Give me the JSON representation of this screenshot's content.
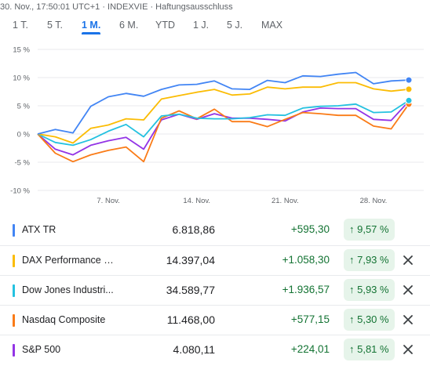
{
  "header": {
    "meta": "30. Nov., 17:50:01 UTC+1 · INDEXVIE · Haftungsausschluss"
  },
  "tabs": [
    {
      "label": "1 T.",
      "active": false
    },
    {
      "label": "5 T.",
      "active": false
    },
    {
      "label": "1 M.",
      "active": true
    },
    {
      "label": "6 M.",
      "active": false
    },
    {
      "label": "YTD",
      "active": false
    },
    {
      "label": "1 J.",
      "active": false
    },
    {
      "label": "5 J.",
      "active": false
    },
    {
      "label": "MAX",
      "active": false
    }
  ],
  "chart_data": {
    "type": "line",
    "x": [
      "1. Nov.",
      "2. Nov.",
      "3. Nov.",
      "4. Nov.",
      "7. Nov.",
      "8. Nov.",
      "9. Nov.",
      "10. Nov.",
      "11. Nov.",
      "14. Nov.",
      "15. Nov.",
      "16. Nov.",
      "17. Nov.",
      "18. Nov.",
      "21. Nov.",
      "22. Nov.",
      "23. Nov.",
      "24. Nov.",
      "25. Nov.",
      "28. Nov.",
      "29. Nov.",
      "30. Nov."
    ],
    "x_ticks": [
      "7. Nov.",
      "14. Nov.",
      "21. Nov.",
      "28. Nov."
    ],
    "y_ticks": [
      15,
      10,
      5,
      0,
      -5,
      -10
    ],
    "ylim": [
      -10,
      15
    ],
    "y_tick_suffix": " %",
    "grid": true,
    "series": [
      {
        "name": "ATX TR",
        "color": "#4285f4",
        "values": [
          0,
          0.8,
          0.2,
          4.9,
          6.6,
          7.2,
          6.7,
          7.9,
          8.7,
          8.8,
          9.4,
          8.0,
          7.9,
          9.5,
          9.1,
          10.3,
          10.2,
          10.6,
          10.9,
          8.9,
          9.4,
          9.57
        ]
      },
      {
        "name": "DAX Performance I...",
        "color": "#fbbc04",
        "values": [
          0,
          -0.5,
          -1.6,
          1.0,
          1.6,
          2.7,
          2.5,
          6.2,
          6.8,
          7.4,
          7.9,
          6.9,
          7.1,
          8.3,
          8.0,
          8.3,
          8.3,
          9.1,
          9.1,
          8.0,
          7.6,
          7.93
        ]
      },
      {
        "name": "Dow Jones Industri...",
        "color": "#24c1e0",
        "values": [
          0,
          -1.5,
          -2.0,
          -1.0,
          0.5,
          1.7,
          -0.5,
          3.2,
          3.5,
          2.8,
          2.7,
          2.7,
          2.9,
          3.4,
          3.3,
          4.6,
          4.9,
          5.0,
          5.3,
          3.8,
          3.9,
          5.93
        ]
      },
      {
        "name": "Nasdaq Composite",
        "color": "#fa7b17",
        "values": [
          0,
          -3.4,
          -4.9,
          -3.7,
          -2.9,
          -2.3,
          -4.9,
          2.8,
          4.1,
          2.7,
          4.4,
          2.2,
          2.2,
          1.3,
          2.6,
          3.8,
          3.6,
          3.3,
          3.3,
          1.4,
          0.9,
          5.3
        ]
      },
      {
        "name": "S&P 500",
        "color": "#9334e6",
        "values": [
          0,
          -2.7,
          -3.7,
          -2.0,
          -1.2,
          -0.6,
          -2.7,
          2.5,
          3.5,
          2.6,
          3.6,
          2.8,
          2.8,
          2.6,
          2.3,
          3.9,
          4.6,
          4.5,
          4.5,
          2.6,
          2.4,
          5.81
        ]
      }
    ]
  },
  "rows": [
    {
      "name": "ATX TR",
      "color": "#4285f4",
      "price": "6.818,86",
      "change": "+595,30",
      "pct": "↑ 9,57 %",
      "removable": false
    },
    {
      "name": "DAX Performance I...",
      "color": "#fbbc04",
      "price": "14.397,04",
      "change": "+1.058,30",
      "pct": "↑ 7,93 %",
      "removable": true
    },
    {
      "name": "Dow Jones Industri...",
      "color": "#24c1e0",
      "price": "34.589,77",
      "change": "+1.936,57",
      "pct": "↑ 5,93 %",
      "removable": true
    },
    {
      "name": "Nasdaq Composite",
      "color": "#fa7b17",
      "price": "11.468,00",
      "change": "+577,15",
      "pct": "↑ 5,30 %",
      "removable": true
    },
    {
      "name": "S&P 500",
      "color": "#9334e6",
      "price": "4.080,11",
      "change": "+224,01",
      "pct": "↑ 5,81 %",
      "removable": true
    }
  ]
}
